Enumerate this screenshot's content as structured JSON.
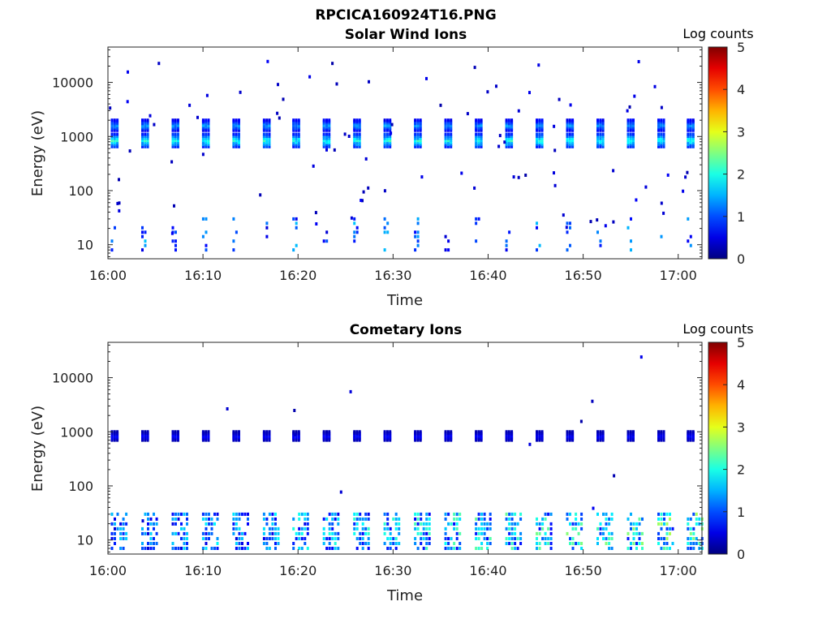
{
  "figure_title": "RPCICA160924T16.PNG",
  "chart_data": [
    {
      "type": "heatmap",
      "title": "Solar Wind Ions",
      "xlabel": "Time",
      "ylabel": "Energy (eV)",
      "x_ticks": [
        "16:00",
        "16:10",
        "16:20",
        "16:30",
        "16:40",
        "16:50",
        "17:00"
      ],
      "x_tick_minutes": [
        0,
        10,
        20,
        30,
        40,
        50,
        60
      ],
      "xlim_minutes": [
        0,
        62.5
      ],
      "y_scale": "log",
      "ylim": [
        5.5,
        45000
      ],
      "y_ticks": [
        10,
        100,
        1000,
        10000
      ],
      "y_tick_labels": [
        "10",
        "100",
        "1000",
        "10000"
      ],
      "colorbar": {
        "label": "Log counts",
        "range": [
          0,
          5
        ],
        "ticks": [
          "0",
          "1",
          "2",
          "3",
          "4",
          "5"
        ],
        "colormap": "jet"
      },
      "sweep_times_minutes": [
        0.3,
        3.5,
        6.7,
        9.9,
        13.1,
        16.3,
        19.4,
        22.6,
        25.8,
        29.0,
        32.2,
        35.4,
        38.6,
        41.8,
        45.0,
        48.2,
        51.4,
        54.6,
        57.8,
        60.9
      ],
      "beams": [
        {
          "energy_low": 650,
          "energy_high": 1100,
          "log_counts_peak": 2.3
        },
        {
          "energy_low": 1300,
          "energy_high": 2000,
          "log_counts_peak": 1.6
        }
      ],
      "low_energy_band": {
        "energy_low": 8,
        "energy_high": 30,
        "log_counts_peak": 1.6
      }
    },
    {
      "type": "heatmap",
      "title": "Cometary Ions",
      "xlabel": "Time",
      "ylabel": "Energy (eV)",
      "x_ticks": [
        "16:00",
        "16:10",
        "16:20",
        "16:30",
        "16:40",
        "16:50",
        "17:00"
      ],
      "x_tick_minutes": [
        0,
        10,
        20,
        30,
        40,
        50,
        60
      ],
      "xlim_minutes": [
        0,
        62.5
      ],
      "y_scale": "log",
      "ylim": [
        5.5,
        45000
      ],
      "y_ticks": [
        10,
        100,
        1000,
        10000
      ],
      "y_tick_labels": [
        "10",
        "100",
        "1000",
        "10000"
      ],
      "colorbar": {
        "label": "Log counts",
        "range": [
          0,
          5
        ],
        "ticks": [
          "0",
          "1",
          "2",
          "3",
          "4",
          "5"
        ],
        "colormap": "jet"
      },
      "sweep_times_minutes": [
        0.3,
        3.5,
        6.7,
        9.9,
        13.1,
        16.3,
        19.4,
        22.6,
        25.8,
        29.0,
        32.2,
        35.4,
        38.6,
        41.8,
        45.0,
        48.2,
        51.4,
        54.6,
        57.8,
        60.9
      ],
      "beams": [
        {
          "energy_low": 700,
          "energy_high": 1000,
          "log_counts_peak": 0.7
        }
      ],
      "low_energy_band": {
        "energy_low": 7,
        "energy_high": 30,
        "log_counts_peak": 2.8
      }
    }
  ]
}
